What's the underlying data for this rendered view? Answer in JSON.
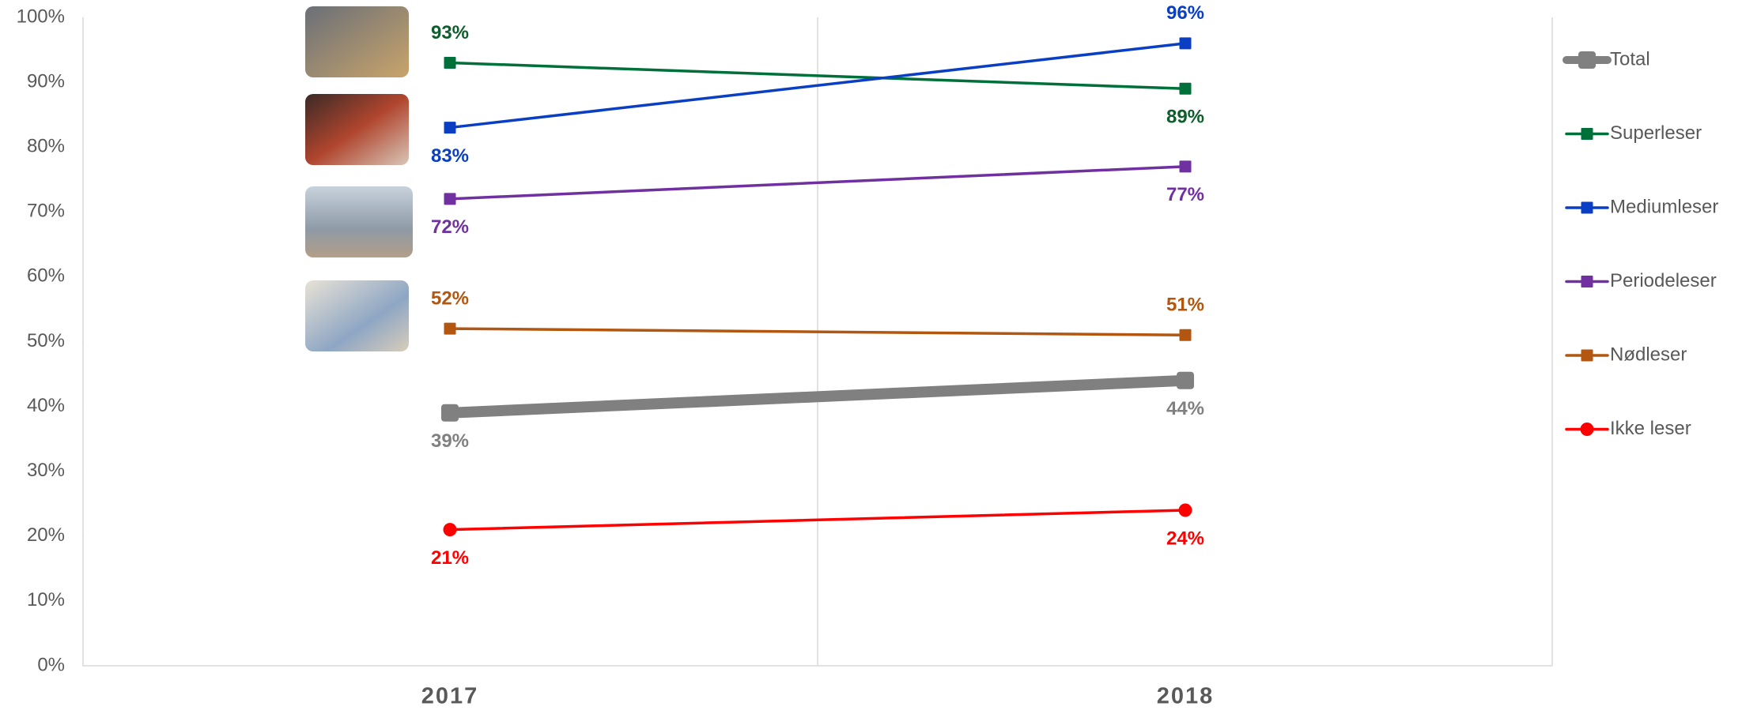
{
  "chart_data": {
    "type": "line",
    "categories": [
      "2017",
      "2018"
    ],
    "ylim": [
      0,
      100
    ],
    "yticks": [
      {
        "value": 0,
        "label": "0%"
      },
      {
        "value": 10,
        "label": "10%"
      },
      {
        "value": 20,
        "label": "20%"
      },
      {
        "value": 30,
        "label": "30%"
      },
      {
        "value": 40,
        "label": "40%"
      },
      {
        "value": 50,
        "label": "50%"
      },
      {
        "value": 60,
        "label": "60%"
      },
      {
        "value": 70,
        "label": "70%"
      },
      {
        "value": 80,
        "label": "80%"
      },
      {
        "value": 90,
        "label": "90%"
      },
      {
        "value": 100,
        "label": "100%"
      }
    ],
    "legend": "right",
    "series": [
      {
        "name": "Total",
        "color": "#808080",
        "marker": "square",
        "values": [
          39,
          44
        ],
        "value_labels": [
          "39%",
          "44%"
        ]
      },
      {
        "name": "Superleser",
        "color": "#00703a",
        "marker": "square",
        "values": [
          93,
          89
        ],
        "value_labels": [
          "93%",
          "89%"
        ]
      },
      {
        "name": "Mediumleser",
        "color": "#0a3fc4",
        "marker": "square",
        "values": [
          83,
          96
        ],
        "value_labels": [
          "83%",
          "96%"
        ]
      },
      {
        "name": "Periodeleser",
        "color": "#7030a0",
        "marker": "square",
        "values": [
          72,
          77
        ],
        "value_labels": [
          "72%",
          "77%"
        ]
      },
      {
        "name": "Nødleser",
        "color": "#b3560f",
        "marker": "square",
        "values": [
          52,
          51
        ],
        "value_labels": [
          "52%",
          "51%"
        ]
      },
      {
        "name": "Ikke leser",
        "color": "#ff0000",
        "marker": "circle",
        "values": [
          21,
          24
        ],
        "value_labels": [
          "21%",
          "24%"
        ]
      }
    ]
  }
}
